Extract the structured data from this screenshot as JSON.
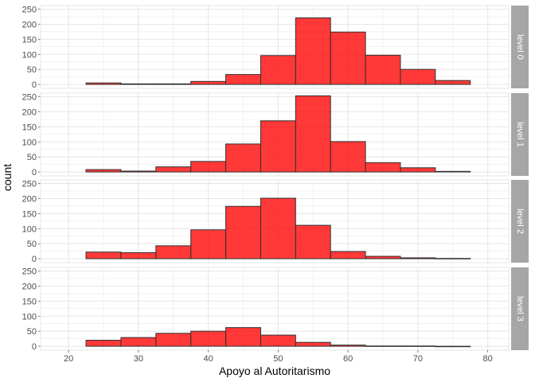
{
  "chart_data": {
    "type": "bar",
    "subtype": "histogram-faceted",
    "xlabel": "Apoyo al Autoritarismo",
    "ylabel": "count",
    "xlim": [
      16,
      83
    ],
    "ylim": [
      -13,
      262
    ],
    "x_ticks": [
      20,
      30,
      40,
      50,
      60,
      70,
      80
    ],
    "y_ticks": [
      0,
      50,
      100,
      150,
      200,
      250
    ],
    "bin_width": 5,
    "bin_starts": [
      22.5,
      27.5,
      32.5,
      37.5,
      42.5,
      47.5,
      52.5,
      57.5,
      62.5,
      67.5,
      72.5
    ],
    "grid": true,
    "bar_fill": "#FF0000",
    "bar_opacity": 0.78,
    "bar_outline": "#333333",
    "strip_color": "#A6A6A6",
    "grid_color": "#E5E5E5",
    "facets": [
      {
        "label": "level 0",
        "values": [
          5,
          2,
          2,
          10,
          33,
          96,
          221,
          174,
          97,
          50,
          13
        ]
      },
      {
        "label": "level 1",
        "values": [
          8,
          3,
          17,
          35,
          93,
          170,
          253,
          101,
          31,
          14,
          2
        ]
      },
      {
        "label": "level 2",
        "values": [
          22,
          20,
          43,
          96,
          174,
          201,
          111,
          24,
          8,
          3,
          1
        ]
      },
      {
        "label": "level 3",
        "values": [
          20,
          29,
          43,
          50,
          62,
          37,
          13,
          4,
          1,
          1,
          0
        ]
      }
    ]
  }
}
